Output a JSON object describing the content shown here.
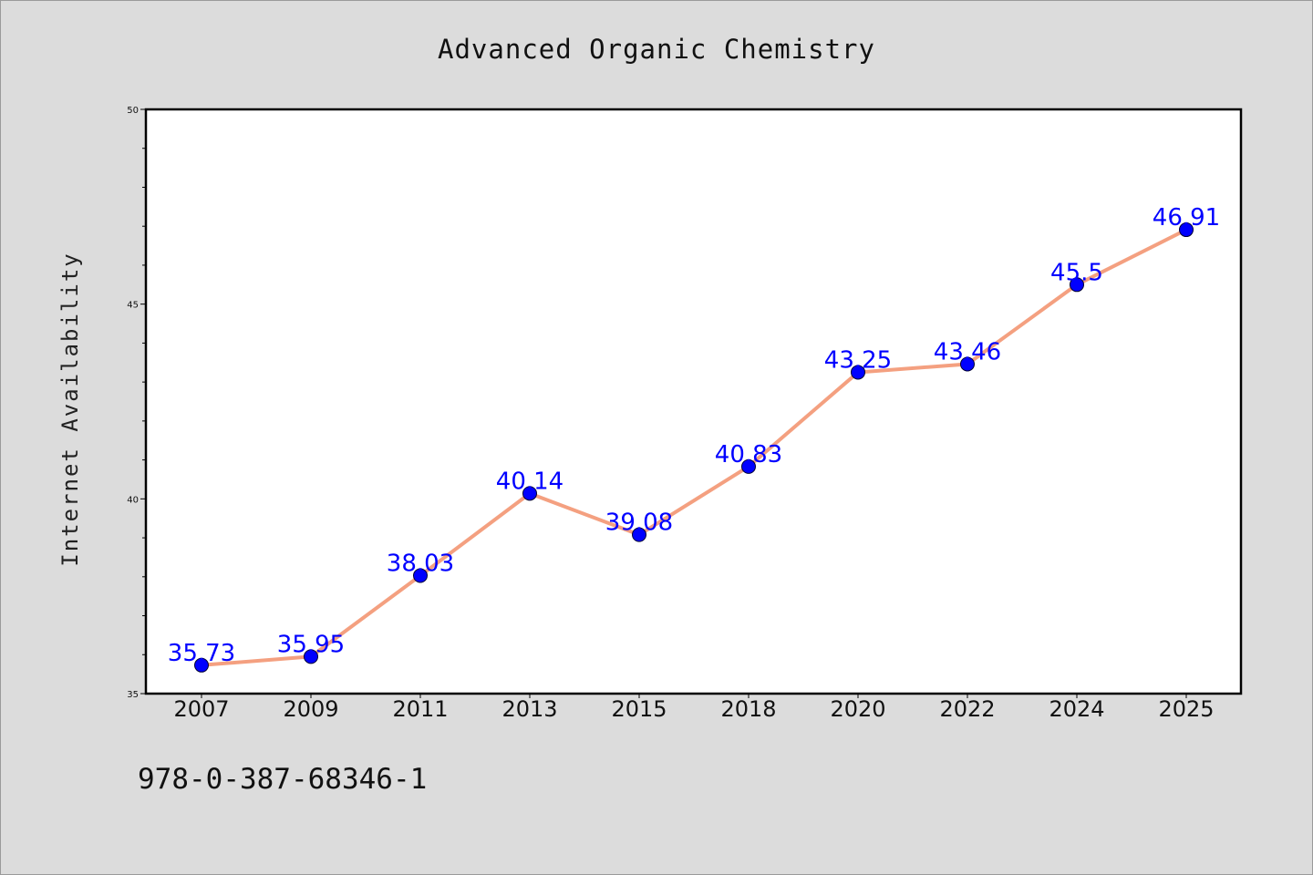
{
  "chart_data": {
    "type": "line",
    "title": "Advanced Organic Chemistry",
    "xlabel": "",
    "ylabel": "Internet Availability",
    "categories": [
      "2007",
      "2009",
      "2011",
      "2013",
      "2015",
      "2018",
      "2020",
      "2022",
      "2024",
      "2025"
    ],
    "series": [
      {
        "values": [
          35.73,
          35.95,
          38.03,
          40.14,
          39.08,
          40.83,
          43.25,
          43.46,
          45.5,
          46.91
        ],
        "labels": [
          "35.73",
          "35.95",
          "38.03",
          "40.14",
          "39.08",
          "40.83",
          "43.25",
          "43.46",
          "45.5",
          "46.91"
        ],
        "line_color": "#f4a080",
        "marker_color": "#0000ff"
      }
    ],
    "ylim": [
      35,
      50
    ],
    "yticks": [
      35,
      40,
      45,
      50
    ],
    "ytick_labels": [
      "35",
      "40",
      "45",
      "50"
    ],
    "grid": false,
    "legend": "none"
  },
  "footer_text": "978-0-387-68346-1",
  "colors": {
    "background": "#dcdcdc",
    "plot_background": "#ffffff",
    "axis": "#000000",
    "label": "#0000ff"
  }
}
